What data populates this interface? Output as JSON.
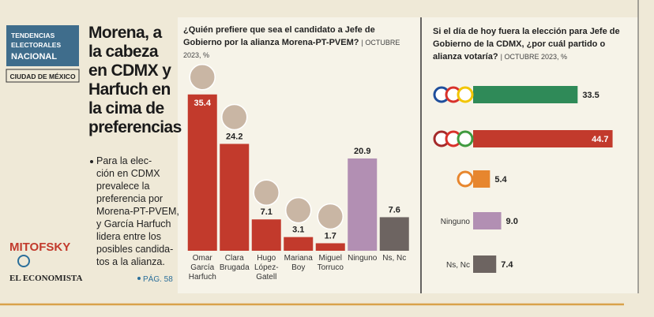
{
  "sidebar": {
    "logo": [
      "TENDENCIAS",
      "ELECTORALES",
      "NACIONAL"
    ],
    "region": "CIUDAD DE MÉXICO",
    "headline": [
      "Morena, a",
      "la cabeza",
      "en CDMX y",
      "Harfuch en",
      "la cima de",
      "preferencias"
    ],
    "bullet": [
      "Para la elec-",
      "ción en CDMX",
      "prevalece la",
      "preferencia por",
      "Morena-PT-PVEM,",
      "y García Harfuch",
      "lidera entre los",
      "posibles candida-",
      "tos a la alianza."
    ],
    "pollster": "MITOFSKY",
    "publisher": "EL ECONOMISTA",
    "page_ref": "PÁG. 58"
  },
  "chart_data": [
    {
      "type": "bar",
      "title": "¿Quién prefiere que sea el candidato a Jefe de Gobierno por la alianza Morena-PT-PVEM?",
      "subtitle": "| OCTUBRE 2023, %",
      "categories": [
        "Omar García Harfuch",
        "Clara Brugada",
        "Hugo López-Gatell",
        "Mariana Boy",
        "Miguel Torruco",
        "Ninguno",
        "Ns, Nc"
      ],
      "values": [
        35.4,
        24.2,
        7.1,
        3.1,
        1.7,
        20.9,
        7.6
      ],
      "colors": [
        "#c23a2c",
        "#c23a2c",
        "#c23a2c",
        "#c23a2c",
        "#c23a2c",
        "#b28fb3",
        "#6d6461"
      ]
    },
    {
      "type": "barh",
      "title": "Si el día de hoy fuera la elección para Jefe de Gobierno de la CDMX, ¿por cuál partido o alianza votaría?",
      "subtitle": "| OCTUBRE 2023, %",
      "categories": [
        null,
        null,
        null,
        "Ninguno",
        "Ns, Nc"
      ],
      "values": [
        33.5,
        44.7,
        5.4,
        9.0,
        7.4
      ],
      "value_labels": [
        "33.5",
        "44.7",
        "5.4",
        "9.0",
        "7.4"
      ],
      "colors": [
        "#2f8a58",
        "#c23a2c",
        "#e7862e",
        "#b28fb3",
        "#6d6461"
      ]
    }
  ]
}
